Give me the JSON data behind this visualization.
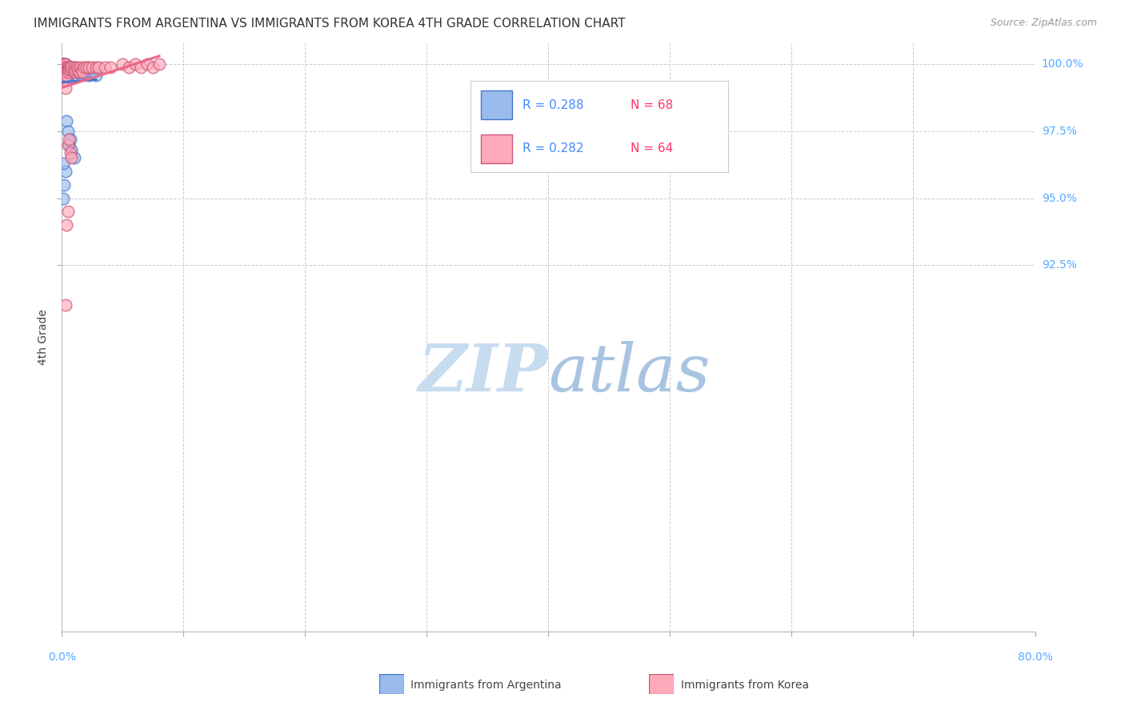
{
  "title": "IMMIGRANTS FROM ARGENTINA VS IMMIGRANTS FROM KOREA 4TH GRADE CORRELATION CHART",
  "source": "Source: ZipAtlas.com",
  "ylabel": "4th Grade",
  "color_argentina": "#99BBEE",
  "color_korea": "#FFAABB",
  "color_argentina_line": "#4477CC",
  "color_korea_line": "#EE6688",
  "color_right_labels": "#55AAFF",
  "watermark_zip": "ZIP",
  "watermark_atlas": "atlas",
  "watermark_color_zip": "#CCDDF5",
  "watermark_color_atlas": "#AACCEE",
  "xlim": [
    0.0,
    0.8
  ],
  "ylim": [
    0.788,
    1.008
  ],
  "x_tick_positions": [
    0.0,
    0.1,
    0.2,
    0.3,
    0.4,
    0.5,
    0.6,
    0.7,
    0.8
  ],
  "y_tick_positions": [
    1.0,
    0.975,
    0.95,
    0.925
  ],
  "y_right_labels": [
    "100.0%",
    "97.5%",
    "95.0%",
    "92.5%"
  ],
  "argentina_x": [
    0.001,
    0.001,
    0.001,
    0.001,
    0.001,
    0.001,
    0.001,
    0.001,
    0.001,
    0.001,
    0.001,
    0.001,
    0.001,
    0.001,
    0.001,
    0.002,
    0.002,
    0.002,
    0.002,
    0.002,
    0.002,
    0.002,
    0.002,
    0.002,
    0.002,
    0.003,
    0.003,
    0.003,
    0.003,
    0.003,
    0.003,
    0.003,
    0.003,
    0.003,
    0.004,
    0.004,
    0.004,
    0.004,
    0.004,
    0.005,
    0.005,
    0.005,
    0.005,
    0.006,
    0.006,
    0.006,
    0.007,
    0.007,
    0.008,
    0.008,
    0.009,
    0.01,
    0.01,
    0.011,
    0.012,
    0.013,
    0.015,
    0.016,
    0.018,
    0.02,
    0.022,
    0.025,
    0.028,
    0.004,
    0.003,
    0.002,
    0.001,
    0.001
  ],
  "argentina_y": [
    1.0,
    1.0,
    1.0,
    1.0,
    1.0,
    1.0,
    1.0,
    1.0,
    1.0,
    1.0,
    1.0,
    1.0,
    1.0,
    0.999,
    0.999,
    1.0,
    1.0,
    0.999,
    0.999,
    0.999,
    0.998,
    0.998,
    0.998,
    0.997,
    0.997,
    1.0,
    0.999,
    0.999,
    0.998,
    0.998,
    0.997,
    0.997,
    0.996,
    0.996,
    0.999,
    0.998,
    0.997,
    0.996,
    0.979,
    0.999,
    0.998,
    0.997,
    0.975,
    0.999,
    0.998,
    0.97,
    0.999,
    0.972,
    0.998,
    0.968,
    0.997,
    0.999,
    0.965,
    0.998,
    0.996,
    0.997,
    0.998,
    0.996,
    0.997,
    0.998,
    0.996,
    0.997,
    0.996,
    0.994,
    0.96,
    0.955,
    0.963,
    0.95
  ],
  "korea_x": [
    0.001,
    0.001,
    0.001,
    0.001,
    0.001,
    0.001,
    0.001,
    0.002,
    0.002,
    0.002,
    0.002,
    0.002,
    0.002,
    0.003,
    0.003,
    0.003,
    0.003,
    0.003,
    0.003,
    0.004,
    0.004,
    0.004,
    0.004,
    0.005,
    0.005,
    0.005,
    0.005,
    0.006,
    0.006,
    0.006,
    0.007,
    0.007,
    0.007,
    0.008,
    0.008,
    0.009,
    0.01,
    0.01,
    0.011,
    0.012,
    0.013,
    0.014,
    0.015,
    0.016,
    0.017,
    0.018,
    0.02,
    0.022,
    0.025,
    0.028,
    0.03,
    0.035,
    0.04,
    0.05,
    0.055,
    0.06,
    0.065,
    0.07,
    0.075,
    0.08,
    0.003,
    0.003,
    0.004,
    0.005
  ],
  "korea_y": [
    1.0,
    1.0,
    1.0,
    1.0,
    1.0,
    0.999,
    0.999,
    1.0,
    0.999,
    0.999,
    0.998,
    0.998,
    0.997,
    1.0,
    0.999,
    0.998,
    0.997,
    0.996,
    0.994,
    0.999,
    0.998,
    0.997,
    0.996,
    0.999,
    0.998,
    0.997,
    0.97,
    0.999,
    0.998,
    0.972,
    0.999,
    0.998,
    0.967,
    0.999,
    0.965,
    0.998,
    0.999,
    0.997,
    0.998,
    0.999,
    0.998,
    0.997,
    0.999,
    0.998,
    0.997,
    0.999,
    0.999,
    0.999,
    0.999,
    0.999,
    0.999,
    0.999,
    0.999,
    1.0,
    0.999,
    1.0,
    0.999,
    1.0,
    0.999,
    1.0,
    0.991,
    0.91,
    0.94,
    0.945
  ]
}
